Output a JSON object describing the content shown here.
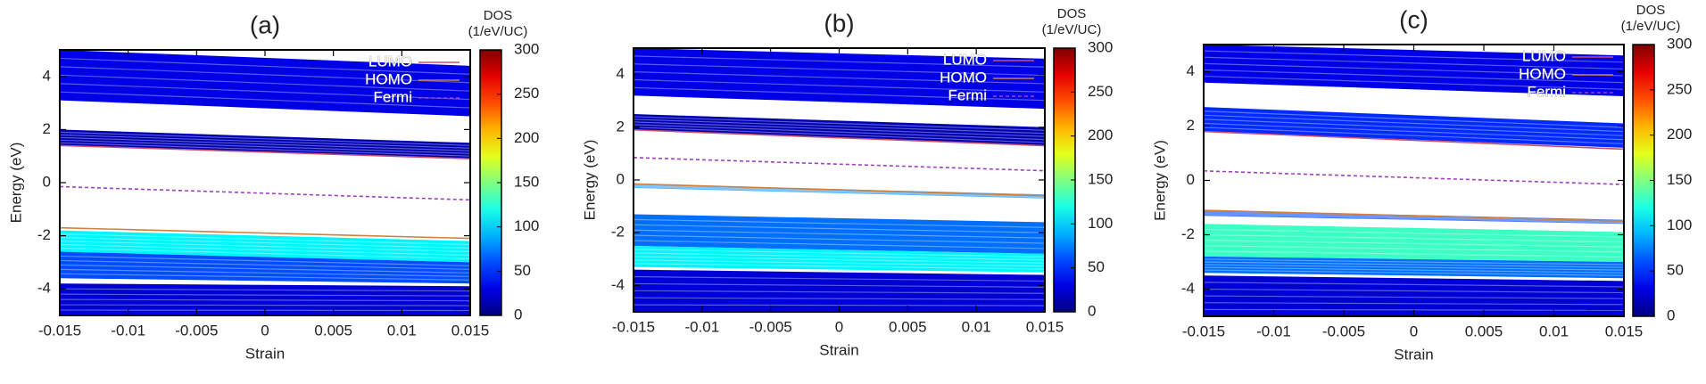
{
  "chart_data": [
    {
      "type": "band_map",
      "title": "(a)",
      "xlabel": "Strain",
      "ylabel": "Energy (eV)",
      "xlim": [
        -0.015,
        0.015
      ],
      "xticks": [
        -0.015,
        -0.01,
        -0.005,
        0,
        0.005,
        0.01,
        0.015
      ],
      "ylim": [
        -5,
        5
      ],
      "yticks": [
        -4,
        -2,
        0,
        2,
        4
      ],
      "colorbar_title": "DOS",
      "colorbar_unit": "(1/eV/UC)",
      "clim": [
        0,
        300
      ],
      "cticks": [
        0,
        50,
        100,
        150,
        200,
        250,
        300
      ],
      "bands": [
        [
          3.1,
          5.0,
          2.5,
          4.4,
          30
        ],
        [
          1.4,
          2.0,
          0.9,
          1.5,
          15
        ],
        [
          -2.6,
          -1.8,
          -3.0,
          -2.2,
          110
        ],
        [
          -3.6,
          -2.6,
          -3.8,
          -3.0,
          60
        ],
        [
          -5,
          -3.8,
          -5,
          -3.9,
          25
        ]
      ],
      "x": [
        -0.015,
        0.015
      ],
      "series": [
        {
          "name": "LUMO",
          "color": "#c8506a",
          "linestyle": "solid",
          "values": [
            1.4,
            0.9
          ]
        },
        {
          "name": "HOMO",
          "color": "#d0803c",
          "linestyle": "solid",
          "values": [
            -1.7,
            -2.1
          ]
        },
        {
          "name": "Fermi",
          "color": "#a040c0",
          "linestyle": "dashed",
          "values": [
            -0.15,
            -0.65
          ]
        }
      ]
    },
    {
      "type": "band_map",
      "title": "(b)",
      "xlabel": "Strain",
      "ylabel": "Energy (eV)",
      "xlim": [
        -0.015,
        0.015
      ],
      "xticks": [
        -0.015,
        -0.01,
        -0.005,
        0,
        0.005,
        0.01,
        0.015
      ],
      "ylim": [
        -5,
        5
      ],
      "yticks": [
        -4,
        -2,
        0,
        2,
        4
      ],
      "colorbar_title": "DOS",
      "colorbar_unit": "(1/eV/UC)",
      "clim": [
        0,
        300
      ],
      "cticks": [
        0,
        50,
        100,
        150,
        200,
        250,
        300
      ],
      "bands": [
        [
          3.2,
          5.0,
          2.7,
          4.6,
          30
        ],
        [
          1.9,
          2.5,
          1.3,
          2.0,
          15
        ],
        [
          -0.3,
          -0.15,
          -0.7,
          -0.55,
          80
        ],
        [
          -2.5,
          -1.3,
          -2.8,
          -1.6,
          70
        ],
        [
          -3.3,
          -2.5,
          -3.5,
          -2.8,
          110
        ],
        [
          -5,
          -3.4,
          -5,
          -3.6,
          25
        ]
      ],
      "x": [
        -0.015,
        0.015
      ],
      "series": [
        {
          "name": "LUMO",
          "color": "#c8506a",
          "linestyle": "solid",
          "values": [
            1.9,
            1.3
          ]
        },
        {
          "name": "HOMO",
          "color": "#d0803c",
          "linestyle": "solid",
          "values": [
            -0.15,
            -0.6
          ]
        },
        {
          "name": "Fermi",
          "color": "#a040c0",
          "linestyle": "dashed",
          "values": [
            0.85,
            0.35
          ]
        }
      ]
    },
    {
      "type": "band_map",
      "title": "(c)",
      "xlabel": "Strain",
      "ylabel": "Energy (eV)",
      "xlim": [
        -0.015,
        0.015
      ],
      "xticks": [
        -0.015,
        -0.01,
        -0.005,
        0,
        0.005,
        0.01,
        0.015
      ],
      "ylim": [
        -5,
        5
      ],
      "yticks": [
        -4,
        -2,
        0,
        2,
        4
      ],
      "colorbar_title": "DOS",
      "colorbar_unit": "(1/eV/UC)",
      "clim": [
        0,
        300
      ],
      "cticks": [
        0,
        50,
        100,
        150,
        200,
        250,
        300
      ],
      "bands": [
        [
          3.6,
          5.0,
          3.1,
          4.6,
          30
        ],
        [
          1.8,
          2.7,
          1.2,
          2.1,
          50
        ],
        [
          -1.3,
          -1.1,
          -1.6,
          -1.45,
          60
        ],
        [
          -2.8,
          -1.6,
          -3.0,
          -1.9,
          130
        ],
        [
          -3.4,
          -2.8,
          -3.6,
          -3.0,
          70
        ],
        [
          -5,
          -3.5,
          -5,
          -3.7,
          25
        ]
      ],
      "x": [
        -0.015,
        0.015
      ],
      "series": [
        {
          "name": "LUMO",
          "color": "#c8506a",
          "linestyle": "solid",
          "values": [
            1.8,
            1.15
          ]
        },
        {
          "name": "HOMO",
          "color": "#d0803c",
          "linestyle": "solid",
          "values": [
            -1.1,
            -1.5
          ]
        },
        {
          "name": "Fermi",
          "color": "#a040c0",
          "linestyle": "dashed",
          "values": [
            0.35,
            -0.15
          ]
        }
      ]
    }
  ]
}
